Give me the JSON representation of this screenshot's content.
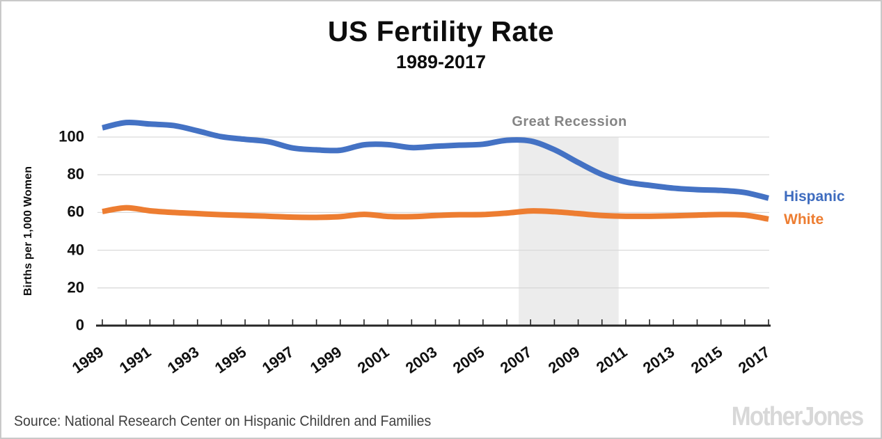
{
  "title": "US Fertility Rate",
  "subtitle": "1989-2017",
  "ylabel": "Births per 1,000 Women",
  "source": "Source: National Research Center on Hispanic Children and Families",
  "logo": "MotherJones",
  "legend": [
    {
      "label": "Hispanic",
      "color": "#3e6cbf"
    },
    {
      "label": "White",
      "color": "#ed7d31"
    }
  ],
  "colors": {
    "hispanic_line": "#4472c4",
    "white_line": "#ed7d31",
    "recession_band": "#ececec",
    "annotation_text": "#858585",
    "gridline": "#d9d9d9",
    "axis": "#262626"
  },
  "chart_data": {
    "type": "line",
    "x": [
      1989,
      1990,
      1991,
      1992,
      1993,
      1994,
      1995,
      1996,
      1997,
      1998,
      1999,
      2000,
      2001,
      2002,
      2003,
      2004,
      2005,
      2006,
      2007,
      2008,
      2009,
      2010,
      2011,
      2012,
      2013,
      2014,
      2015,
      2016,
      2017
    ],
    "series": [
      {
        "name": "Hispanic",
        "color": "#4472c4",
        "values": [
          104.9,
          107.7,
          106.9,
          106.1,
          103.3,
          100.2,
          98.8,
          97.5,
          94.2,
          93.2,
          93.0,
          95.9,
          96.0,
          94.4,
          95.1,
          95.7,
          96.2,
          98.3,
          97.9,
          93.3,
          86.5,
          80.2,
          76.2,
          74.4,
          72.9,
          72.1,
          71.7,
          70.6,
          67.6
        ]
      },
      {
        "name": "White",
        "color": "#ed7d31",
        "values": [
          60.5,
          62.5,
          60.9,
          60.0,
          59.4,
          58.8,
          58.4,
          58.0,
          57.5,
          57.4,
          57.8,
          59.0,
          57.9,
          57.8,
          58.4,
          58.8,
          58.9,
          59.7,
          60.8,
          60.4,
          59.4,
          58.4,
          58.0,
          58.0,
          58.2,
          58.6,
          58.9,
          58.6,
          56.5
        ]
      }
    ],
    "x_tick_labels": [
      "1989",
      "1991",
      "1993",
      "1995",
      "1997",
      "1999",
      "2001",
      "2003",
      "2005",
      "2007",
      "2009",
      "2011",
      "2013",
      "2015",
      "2017"
    ],
    "y_ticks": [
      0,
      20,
      40,
      60,
      80,
      100
    ],
    "ylim": [
      0,
      110
    ],
    "grid": "horizontal",
    "legend_position": "right-of-plot",
    "recession_band": {
      "label": "Great Recession",
      "x_start": 2006.5,
      "x_end": 2010.7
    }
  }
}
